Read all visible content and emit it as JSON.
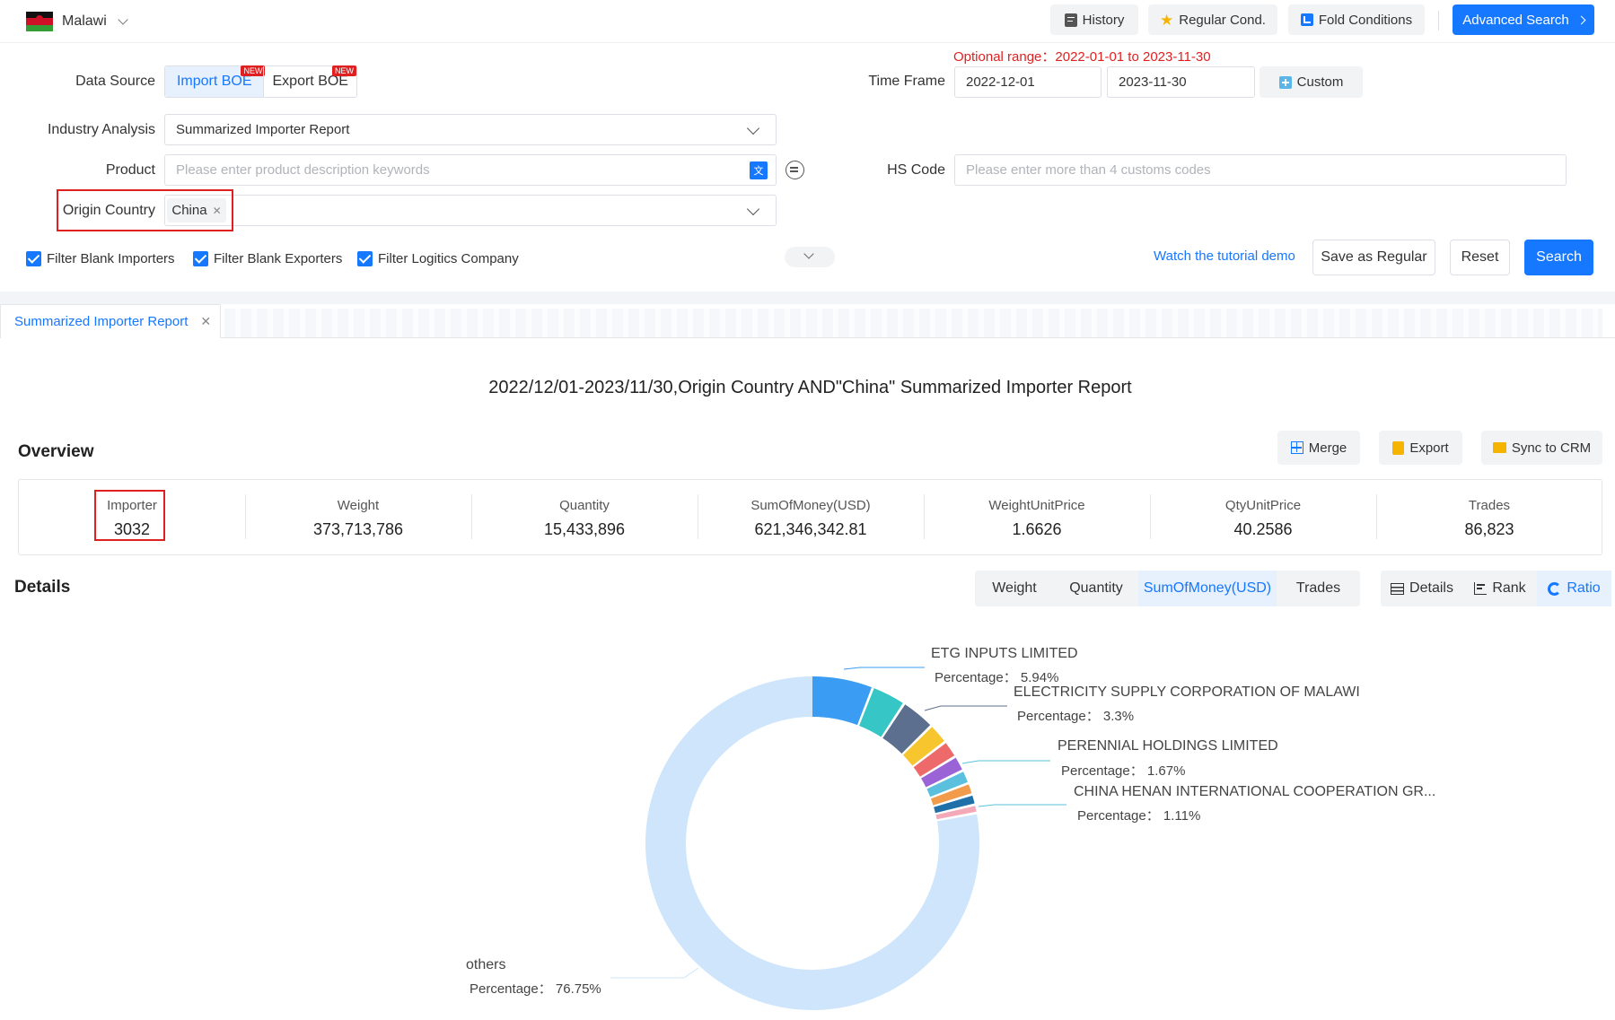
{
  "header": {
    "country": "Malawi",
    "history_label": "History",
    "regular_cond_label": "Regular Cond.",
    "fold_label": "Fold Conditions",
    "advanced_label": "Advanced Search"
  },
  "filters": {
    "optional_range_label": "Optional range：",
    "optional_range_value": "2022-01-01 to 2023-11-30",
    "data_source_label": "Data Source",
    "import_boe": "Import BOE",
    "export_boe": "Export BOE",
    "new_badge": "NEW",
    "time_frame_label": "Time Frame",
    "date_from": "2022-12-01",
    "date_to": "2023-11-30",
    "custom_label": "Custom",
    "industry_label": "Industry Analysis",
    "industry_value": "Summarized Importer Report",
    "product_label": "Product",
    "product_placeholder": "Please enter product description keywords",
    "hs_label": "HS Code",
    "hs_placeholder": "Please enter more than 4 customs codes",
    "origin_label": "Origin Country",
    "origin_tag": "China",
    "cb1": "Filter Blank Importers",
    "cb2": "Filter Blank Exporters",
    "cb3": "Filter Logitics Company",
    "tutorial": "Watch the tutorial demo",
    "save_regular": "Save as Regular",
    "reset": "Reset",
    "search": "Search"
  },
  "tab": {
    "label": "Summarized Importer Report"
  },
  "report": {
    "title": "2022/12/01-2023/11/30,Origin Country AND\"China\" Summarized Importer Report",
    "overview_label": "Overview",
    "merge": "Merge",
    "export": "Export",
    "sync": "Sync to CRM",
    "stats": [
      {
        "title": "Importer",
        "value": "3032"
      },
      {
        "title": "Weight",
        "value": "373,713,786"
      },
      {
        "title": "Quantity",
        "value": "15,433,896"
      },
      {
        "title": "SumOfMoney(USD)",
        "value": "621,346,342.81"
      },
      {
        "title": "WeightUnitPrice",
        "value": "1.6626"
      },
      {
        "title": "QtyUnitPrice",
        "value": "40.2586"
      },
      {
        "title": "Trades",
        "value": "86,823"
      }
    ],
    "details_label": "Details",
    "metric_tabs": [
      "Weight",
      "Quantity",
      "SumOfMoney(USD)",
      "Trades"
    ],
    "view_tabs": [
      "Details",
      "Rank",
      "Ratio"
    ]
  },
  "chart_data": {
    "type": "pie",
    "subtype": "donut",
    "title": "",
    "slices": [
      {
        "name": "ETG INPUTS LIMITED",
        "value": 5.94,
        "color": "#3a9cf2"
      },
      {
        "name": "ELECTRICITY SUPPLY CORPORATION OF MALAWI",
        "value": 3.3,
        "color": "#36c6c6"
      },
      {
        "name": "",
        "value": 3.3,
        "color": "#5c6f8f"
      },
      {
        "name": "",
        "value": 2.0,
        "color": "#f7c62f"
      },
      {
        "name": "PERENNIAL HOLDINGS LIMITED",
        "value": 1.67,
        "color": "#ee6a6a"
      },
      {
        "name": "",
        "value": 1.5,
        "color": "#9a63d6"
      },
      {
        "name": "",
        "value": 1.3,
        "color": "#5bc0de"
      },
      {
        "name": "CHINA HENAN INTERNATIONAL COOPERATION GR...",
        "value": 1.11,
        "color": "#f29b4a"
      },
      {
        "name": "",
        "value": 1.0,
        "color": "#1f6fa8"
      },
      {
        "name": "",
        "value": 0.8,
        "color": "#f4a9b8"
      },
      {
        "name": "others",
        "value": 76.75,
        "color": "#cfe5fb"
      }
    ],
    "labels": [
      {
        "name": "ETG INPUTS LIMITED",
        "pct": "Percentage：  5.94%"
      },
      {
        "name": "ELECTRICITY SUPPLY CORPORATION OF MALAWI",
        "pct": "Percentage：  3.3%"
      },
      {
        "name": "PERENNIAL HOLDINGS LIMITED",
        "pct": "Percentage：  1.67%"
      },
      {
        "name": "CHINA HENAN INTERNATIONAL COOPERATION GR...",
        "pct": "Percentage：  1.11%"
      },
      {
        "name": "others",
        "pct": "Percentage：  76.75%"
      }
    ]
  }
}
